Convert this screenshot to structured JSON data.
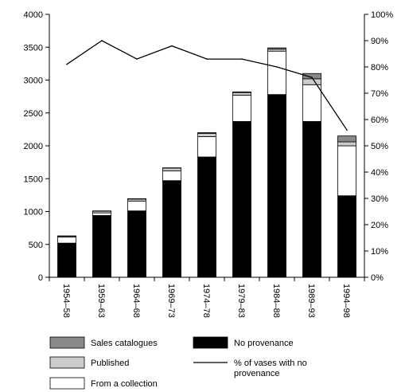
{
  "chart_data": {
    "type": "bar",
    "stacked": true,
    "title": "",
    "xlabel": "",
    "ylabel": "",
    "y2label": "",
    "categories": [
      "1954–58",
      "1959–63",
      "1964–68",
      "1969–73",
      "1974–78",
      "1979–83",
      "1984–88",
      "1989–93",
      "1994–98"
    ],
    "ylim": [
      0,
      4000
    ],
    "yticks": [
      "0",
      "500",
      "1000",
      "1500",
      "2000",
      "2500",
      "3000",
      "3500",
      "4000"
    ],
    "y2lim": [
      0,
      100
    ],
    "y2ticks": [
      "0%",
      "10%",
      "20%",
      "30%",
      "40%",
      "50%",
      "60%",
      "70%",
      "80%",
      "90%",
      "100%"
    ],
    "grid": false,
    "legend_position": "bottom",
    "series": [
      {
        "name": "No provenance",
        "kind": "bar",
        "color": "#000000",
        "values": [
          520,
          940,
          1010,
          1470,
          1830,
          2370,
          2780,
          2370,
          1240
        ]
      },
      {
        "name": "From a collection",
        "kind": "bar",
        "color": "#ffffff",
        "values": [
          90,
          40,
          150,
          150,
          310,
          400,
          660,
          560,
          760
        ]
      },
      {
        "name": "Published",
        "kind": "bar",
        "color": "#cccccc",
        "values": [
          15,
          25,
          30,
          40,
          50,
          40,
          30,
          90,
          60
        ]
      },
      {
        "name": "Sales catalogues",
        "kind": "bar",
        "color": "#888888",
        "values": [
          5,
          5,
          5,
          5,
          10,
          10,
          20,
          80,
          90
        ]
      },
      {
        "name": "% of vases with no provenance",
        "kind": "line",
        "axis": "right",
        "color": "#000000",
        "values": [
          81,
          90,
          83,
          88,
          83,
          83,
          80,
          76,
          56
        ]
      }
    ],
    "legend": [
      {
        "label": "Sales catalogues",
        "symbol": "box",
        "color": "#888888"
      },
      {
        "label": "No provenance",
        "symbol": "box",
        "color": "#000000"
      },
      {
        "label": "Published",
        "symbol": "box",
        "color": "#cccccc"
      },
      {
        "label_lines": [
          "% of vases with no",
          "provenance"
        ],
        "symbol": "line",
        "color": "#000000"
      },
      {
        "label": "From a collection",
        "symbol": "box",
        "color": "#ffffff"
      }
    ]
  }
}
